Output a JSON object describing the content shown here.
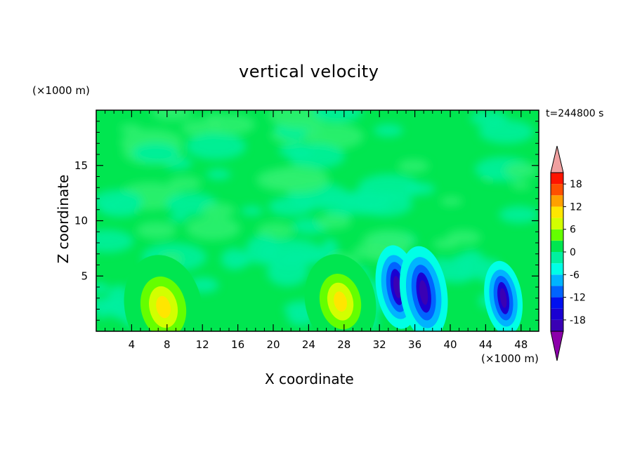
{
  "chart_data": {
    "type": "heatmap",
    "title": "vertical velocity",
    "xlabel": "X coordinate",
    "ylabel": "Z coordinate",
    "x_unit": "(×1000 m)",
    "y_unit": "(×1000 m)",
    "time_label": "t=244800 s",
    "xlim": [
      0,
      50
    ],
    "ylim": [
      0,
      20
    ],
    "x_ticks": [
      4,
      8,
      12,
      16,
      20,
      24,
      28,
      32,
      36,
      40,
      44,
      48
    ],
    "y_ticks": [
      5,
      10,
      15
    ],
    "colorbar": {
      "levels": [
        -21,
        -18,
        -15,
        -12,
        -9,
        -6,
        -3,
        0,
        3,
        6,
        9,
        12,
        15,
        18,
        21
      ],
      "tick_labels": [
        "18",
        "12",
        "6",
        "0",
        "-6",
        "-12",
        "-18"
      ],
      "tick_values": [
        18,
        12,
        6,
        0,
        -6,
        -12,
        -18
      ],
      "colors": [
        "#5a00a0",
        "#3a00b4",
        "#1a00d2",
        "#0010f0",
        "#0064ff",
        "#00b4ff",
        "#00ffe6",
        "#00f0a0",
        "#00e650",
        "#64ff00",
        "#d2ff00",
        "#ffe600",
        "#ffa000",
        "#ff5000",
        "#ff1400",
        "#f0a0a0"
      ],
      "over_color": "#f0a0a0",
      "under_color": "#8c00aa"
    },
    "features": [
      {
        "x": 7.5,
        "z": 2.5,
        "w": 2.2,
        "kind": "updraft"
      },
      {
        "x": 27.5,
        "z": 3.0,
        "w": 2.0,
        "kind": "updraft"
      },
      {
        "x": 34.0,
        "z": 4.0,
        "w": -1.8,
        "kind": "downdraft"
      },
      {
        "x": 37.0,
        "z": 3.5,
        "w": -2.0,
        "kind": "downdraft"
      },
      {
        "x": 46.0,
        "z": 3.0,
        "w": -1.6,
        "kind": "downdraft"
      }
    ],
    "grid": false
  }
}
